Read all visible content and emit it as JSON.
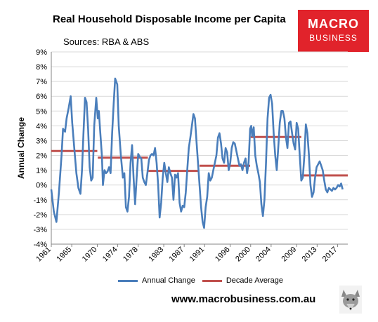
{
  "header": {
    "title": "Real Household Disposable Income per Capita",
    "subtitle": "Sources: RBA & ABS",
    "logo_line1": "MACRO",
    "logo_line2": "BUSINESS",
    "website": "www.macrobusiness.com.au"
  },
  "colors": {
    "annual_change": "#4a7ebb",
    "decade_average": "#c0504d",
    "logo_red": "#e1232b"
  },
  "chart_data": {
    "type": "line",
    "title": "Real Household Disposable Income per Capita",
    "subtitle": "Sources: RBA & ABS",
    "xlabel": "",
    "ylabel": "Annual Change",
    "xlim": [
      1961,
      2019
    ],
    "ylim": [
      -4,
      9
    ],
    "y_ticks": [
      -4,
      -3,
      -2,
      -1,
      0,
      1,
      2,
      3,
      4,
      5,
      6,
      7,
      8,
      9
    ],
    "y_tick_labels": [
      "-4%",
      "-3%",
      "-2%",
      "-1%",
      "0%",
      "1%",
      "2%",
      "3%",
      "4%",
      "5%",
      "6%",
      "7%",
      "8%",
      "9%"
    ],
    "x_tick_labels": [
      "1961",
      "1965",
      "1970",
      "1974",
      "1978",
      "1983",
      "1987",
      "1991",
      "1996",
      "2000",
      "2004",
      "2009",
      "2013",
      "2017"
    ],
    "x_tick_years": [
      1961,
      1965,
      1970,
      1974,
      1978,
      1983,
      1987,
      1991,
      1996,
      2000,
      2004,
      2009,
      2013,
      2017
    ],
    "grid": true,
    "legend_position": "bottom",
    "series": [
      {
        "name": "Annual Change",
        "points": [
          [
            1961.0,
            -0.3
          ],
          [
            1961.5,
            -1.8
          ],
          [
            1962.0,
            -2.5
          ],
          [
            1962.5,
            -0.5
          ],
          [
            1963.0,
            2.0
          ],
          [
            1963.3,
            3.8
          ],
          [
            1963.7,
            3.6
          ],
          [
            1964.0,
            4.5
          ],
          [
            1964.4,
            5.2
          ],
          [
            1964.8,
            6.0
          ],
          [
            1965.1,
            4.2
          ],
          [
            1965.5,
            2.5
          ],
          [
            1965.9,
            0.8
          ],
          [
            1966.3,
            -0.2
          ],
          [
            1966.7,
            -0.6
          ],
          [
            1967.0,
            1.0
          ],
          [
            1967.3,
            3.5
          ],
          [
            1967.6,
            5.9
          ],
          [
            1967.9,
            5.6
          ],
          [
            1968.2,
            3.8
          ],
          [
            1968.5,
            1.2
          ],
          [
            1968.8,
            0.3
          ],
          [
            1969.1,
            0.5
          ],
          [
            1969.4,
            4.0
          ],
          [
            1969.8,
            5.9
          ],
          [
            1970.1,
            4.5
          ],
          [
            1970.3,
            5.0
          ],
          [
            1970.6,
            3.5
          ],
          [
            1970.9,
            2.0
          ],
          [
            1971.1,
            0.0
          ],
          [
            1971.4,
            1.0
          ],
          [
            1971.7,
            0.8
          ],
          [
            1972.0,
            0.9
          ],
          [
            1972.3,
            1.2
          ],
          [
            1972.6,
            0.8
          ],
          [
            1972.9,
            3.5
          ],
          [
            1973.2,
            5.5
          ],
          [
            1973.5,
            7.2
          ],
          [
            1973.7,
            7.0
          ],
          [
            1973.9,
            6.8
          ],
          [
            1974.2,
            4.0
          ],
          [
            1974.6,
            2.0
          ],
          [
            1975.0,
            0.5
          ],
          [
            1975.3,
            0.8
          ],
          [
            1975.6,
            -1.5
          ],
          [
            1975.9,
            -1.8
          ],
          [
            1976.2,
            -0.8
          ],
          [
            1976.5,
            1.5
          ],
          [
            1976.8,
            2.7
          ],
          [
            1977.1,
            0.5
          ],
          [
            1977.4,
            -1.3
          ],
          [
            1977.7,
            0.5
          ],
          [
            1978.0,
            2.1
          ],
          [
            1978.3,
            1.9
          ],
          [
            1978.6,
            1.8
          ],
          [
            1978.9,
            0.5
          ],
          [
            1979.2,
            0.2
          ],
          [
            1979.5,
            0.0
          ],
          [
            1979.8,
            0.8
          ],
          [
            1980.1,
            1.7
          ],
          [
            1980.4,
            2.0
          ],
          [
            1980.7,
            2.1
          ],
          [
            1981.0,
            2.0
          ],
          [
            1981.3,
            2.5
          ],
          [
            1981.6,
            1.5
          ],
          [
            1981.9,
            0.0
          ],
          [
            1982.2,
            -2.2
          ],
          [
            1982.5,
            -1.2
          ],
          [
            1982.8,
            0.5
          ],
          [
            1983.1,
            1.5
          ],
          [
            1983.4,
            0.8
          ],
          [
            1983.7,
            0.2
          ],
          [
            1984.0,
            1.2
          ],
          [
            1984.3,
            0.8
          ],
          [
            1984.6,
            0.5
          ],
          [
            1984.9,
            -1.0
          ],
          [
            1985.2,
            0.7
          ],
          [
            1985.5,
            0.5
          ],
          [
            1985.8,
            0.8
          ],
          [
            1986.1,
            -1.2
          ],
          [
            1986.4,
            -1.8
          ],
          [
            1986.7,
            -1.4
          ],
          [
            1987.0,
            -1.5
          ],
          [
            1987.3,
            -0.5
          ],
          [
            1987.6,
            1.0
          ],
          [
            1987.9,
            2.5
          ],
          [
            1988.2,
            3.2
          ],
          [
            1988.5,
            4.0
          ],
          [
            1988.8,
            4.8
          ],
          [
            1989.1,
            4.5
          ],
          [
            1989.4,
            3.0
          ],
          [
            1989.7,
            1.5
          ],
          [
            1990.0,
            0.0
          ],
          [
            1990.3,
            -1.5
          ],
          [
            1990.6,
            -2.5
          ],
          [
            1990.9,
            -2.9
          ],
          [
            1991.2,
            -1.5
          ],
          [
            1991.5,
            -0.8
          ],
          [
            1991.8,
            0.8
          ],
          [
            1992.1,
            0.3
          ],
          [
            1992.4,
            0.5
          ],
          [
            1992.7,
            1.0
          ],
          [
            1993.0,
            1.5
          ],
          [
            1993.3,
            2.0
          ],
          [
            1993.6,
            3.2
          ],
          [
            1993.9,
            3.5
          ],
          [
            1994.2,
            2.8
          ],
          [
            1994.5,
            1.8
          ],
          [
            1994.8,
            1.5
          ],
          [
            1995.1,
            2.5
          ],
          [
            1995.4,
            2.2
          ],
          [
            1995.7,
            1.0
          ],
          [
            1996.0,
            1.5
          ],
          [
            1996.3,
            2.5
          ],
          [
            1996.6,
            2.9
          ],
          [
            1996.9,
            2.8
          ],
          [
            1997.2,
            2.3
          ],
          [
            1997.5,
            1.8
          ],
          [
            1997.8,
            1.3
          ],
          [
            1998.1,
            1.4
          ],
          [
            1998.4,
            1.0
          ],
          [
            1998.7,
            1.5
          ],
          [
            1999.0,
            1.8
          ],
          [
            1999.3,
            0.8
          ],
          [
            1999.6,
            1.5
          ],
          [
            1999.9,
            3.8
          ],
          [
            2000.1,
            4.0
          ],
          [
            2000.3,
            3.3
          ],
          [
            2000.6,
            3.9
          ],
          [
            2000.9,
            2.0
          ],
          [
            2001.2,
            1.3
          ],
          [
            2001.5,
            0.8
          ],
          [
            2001.8,
            0.2
          ],
          [
            2002.1,
            -1.3
          ],
          [
            2002.4,
            -2.1
          ],
          [
            2002.7,
            -1.0
          ],
          [
            2003.0,
            1.5
          ],
          [
            2003.3,
            4.5
          ],
          [
            2003.6,
            5.9
          ],
          [
            2003.9,
            6.1
          ],
          [
            2004.2,
            5.5
          ],
          [
            2004.5,
            3.5
          ],
          [
            2004.8,
            2.0
          ],
          [
            2005.1,
            1.0
          ],
          [
            2005.4,
            2.5
          ],
          [
            2005.7,
            4.2
          ],
          [
            2006.0,
            5.0
          ],
          [
            2006.3,
            5.0
          ],
          [
            2006.6,
            4.5
          ],
          [
            2006.9,
            3.2
          ],
          [
            2007.2,
            2.5
          ],
          [
            2007.5,
            4.2
          ],
          [
            2007.8,
            4.3
          ],
          [
            2008.1,
            3.5
          ],
          [
            2008.4,
            2.8
          ],
          [
            2008.7,
            2.4
          ],
          [
            2009.0,
            4.2
          ],
          [
            2009.3,
            3.8
          ],
          [
            2009.6,
            2.0
          ],
          [
            2009.9,
            0.3
          ],
          [
            2010.2,
            0.5
          ],
          [
            2010.5,
            2.0
          ],
          [
            2010.8,
            4.1
          ],
          [
            2011.1,
            3.5
          ],
          [
            2011.4,
            2.0
          ],
          [
            2011.7,
            0.0
          ],
          [
            2012.0,
            -0.8
          ],
          [
            2012.3,
            -0.5
          ],
          [
            2012.6,
            0.5
          ],
          [
            2012.9,
            1.2
          ],
          [
            2013.2,
            1.4
          ],
          [
            2013.5,
            1.6
          ],
          [
            2013.8,
            1.3
          ],
          [
            2014.1,
            1.0
          ],
          [
            2014.4,
            0.3
          ],
          [
            2014.7,
            -0.3
          ],
          [
            2015.0,
            -0.5
          ],
          [
            2015.3,
            -0.2
          ],
          [
            2015.6,
            -0.3
          ],
          [
            2015.9,
            -0.4
          ],
          [
            2016.2,
            -0.2
          ],
          [
            2016.5,
            -0.3
          ],
          [
            2016.8,
            -0.2
          ],
          [
            2017.1,
            0.0
          ],
          [
            2017.4,
            -0.1
          ],
          [
            2017.7,
            0.1
          ],
          [
            2018.0,
            -0.3
          ]
        ]
      },
      {
        "name": "Decade Average",
        "segments": [
          {
            "x": [
              1961,
              1970
            ],
            "y": 2.3
          },
          {
            "x": [
              1970.1,
              1979.9
            ],
            "y": 1.85
          },
          {
            "x": [
              1980,
              1989.9
            ],
            "y": 0.95
          },
          {
            "x": [
              1990,
              1999.9
            ],
            "y": 1.3
          },
          {
            "x": [
              2000,
              2009.9
            ],
            "y": 3.25
          },
          {
            "x": [
              2010,
              2019
            ],
            "y": 0.65
          }
        ]
      }
    ]
  }
}
